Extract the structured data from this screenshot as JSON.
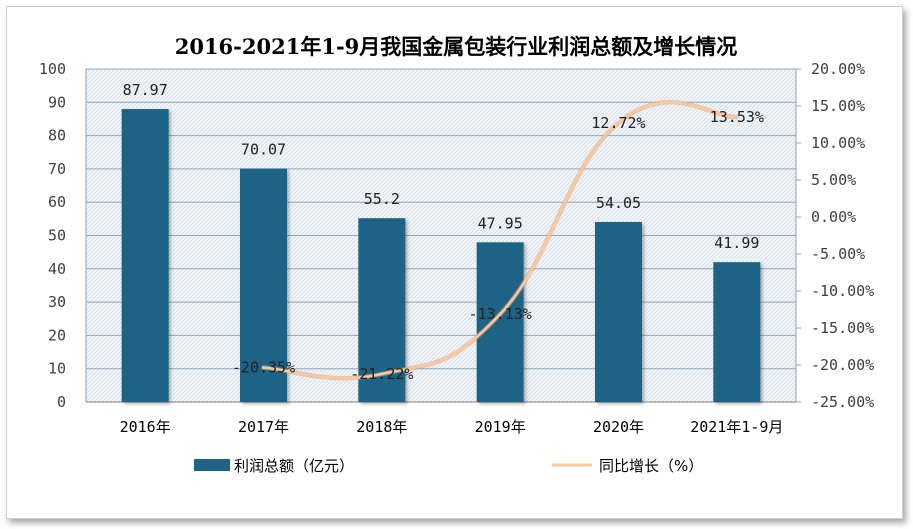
{
  "chart_data": {
    "type": "bar",
    "title": "2016-2021年1-9月我国金属包装行业利润总额及增长情况",
    "categories": [
      "2016年",
      "2017年",
      "2018年",
      "2019年",
      "2020年",
      "2021年1-9月"
    ],
    "series": [
      {
        "name": "利润总额（亿元）",
        "type": "bar",
        "axis": "left",
        "values": [
          87.97,
          70.07,
          55.2,
          47.95,
          54.05,
          41.99
        ],
        "labels": [
          "87.97",
          "70.07",
          "55.2",
          "47.95",
          "54.05",
          "41.99"
        ],
        "color": "#1F6386"
      },
      {
        "name": "同比增长（%）",
        "type": "line",
        "axis": "right",
        "values": [
          null,
          -20.35,
          -21.22,
          -13.13,
          12.72,
          13.53
        ],
        "labels": [
          "",
          "-20.35%",
          "-21.22%",
          "-13.13%",
          "12.72%",
          "13.53%"
        ],
        "color": "#F7C9A0"
      }
    ],
    "y_left": {
      "min": 0,
      "max": 100,
      "ticks": [
        "0",
        "10",
        "20",
        "30",
        "40",
        "50",
        "60",
        "70",
        "80",
        "90",
        "100"
      ]
    },
    "y_right": {
      "min": -25,
      "max": 20,
      "ticks": [
        "-25.00%",
        "-20.00%",
        "-15.00%",
        "-10.00%",
        "-5.00%",
        "0.00%",
        "5.00%",
        "10.00%",
        "15.00%",
        "20.00%"
      ]
    },
    "grid": true,
    "legend": "bottom",
    "colors": {
      "bar": "#1F6386",
      "line": "#F7C9A0",
      "plot_bg": "#EEF2F6",
      "grid": "#8FA6BC"
    }
  }
}
